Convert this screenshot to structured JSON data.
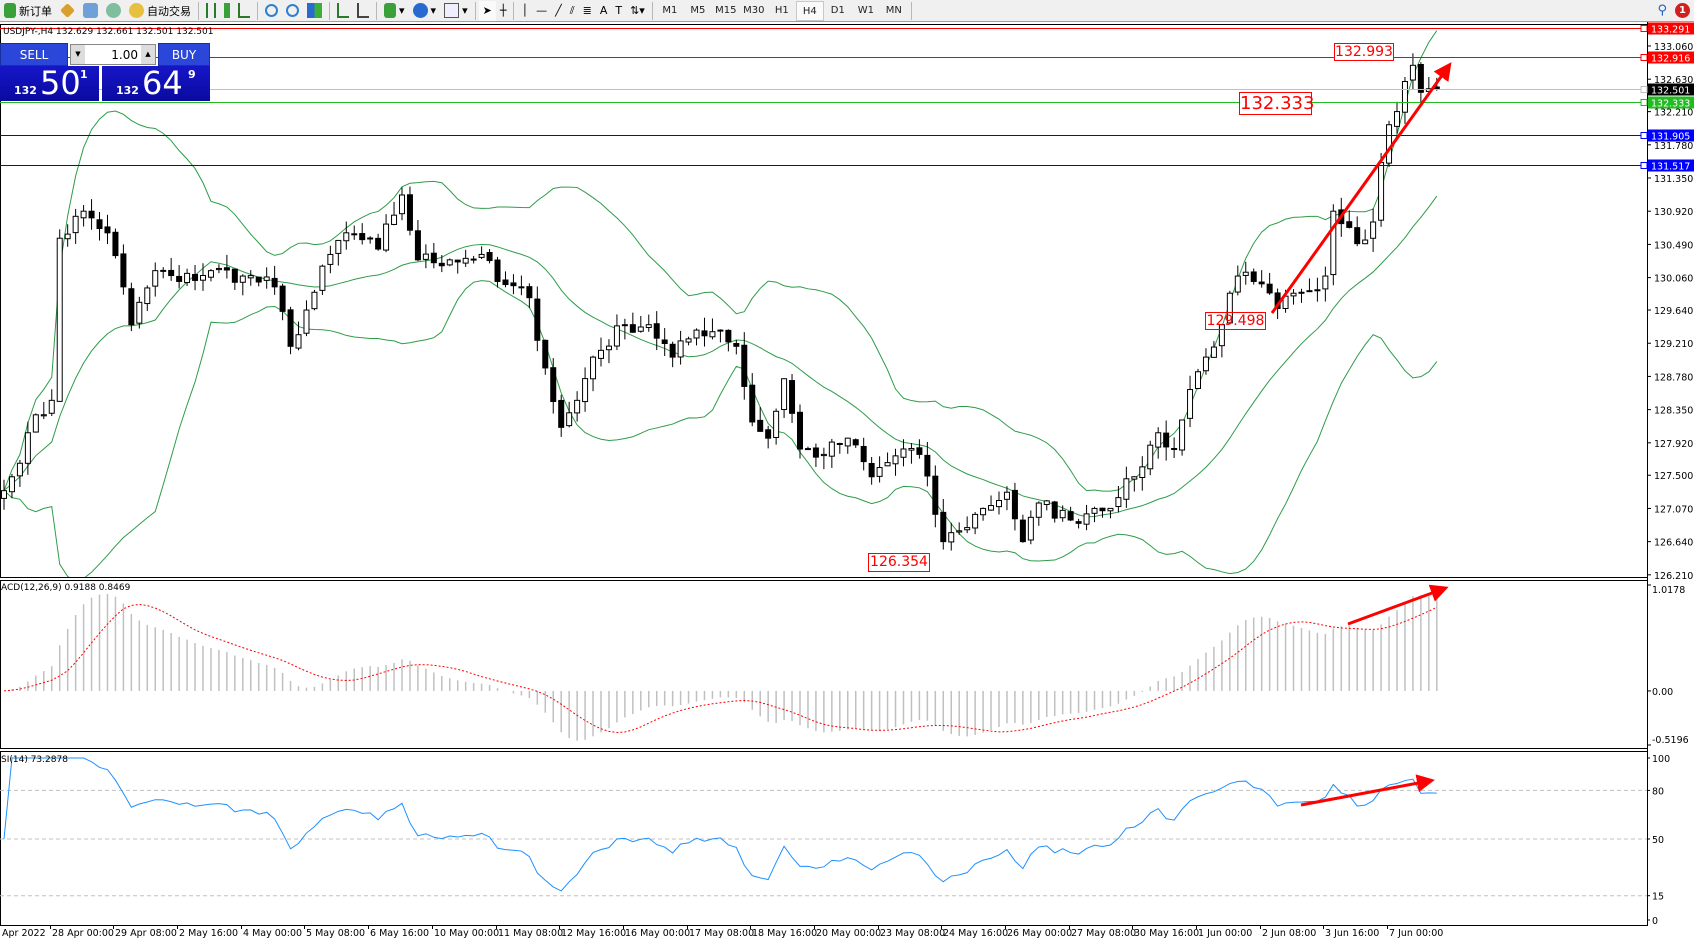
{
  "toolbar": {
    "new_order": "新订单",
    "auto_trading": "自动交易",
    "timeframes": [
      "M1",
      "M5",
      "M15",
      "M30",
      "H1",
      "H4",
      "D1",
      "W1",
      "MN"
    ],
    "selected_timeframe": "H4",
    "notification_count": "1"
  },
  "header": {
    "symbol_info": "USDJPY-,H4  132.629 132.661 132.501 132.501"
  },
  "trade_panel": {
    "sell_label": "SELL",
    "buy_label": "BUY",
    "volume": "1.00",
    "sell_price": {
      "prefix": "132",
      "big": "50",
      "sup": "1"
    },
    "buy_price": {
      "prefix": "132",
      "big": "64",
      "sup": "9"
    }
  },
  "indicators": {
    "macd_label": "ACD(12,26,9) 0.9188 0.8469",
    "rsi_label": "SI(14) 73.2878"
  },
  "colors": {
    "bands": "#2e9c48",
    "macd_hist": "#c0c0c0",
    "macd_signal": "#ff0000",
    "rsi": "#1e90ff",
    "annotation": "#ff0000"
  },
  "chart_data": {
    "type": "candlestick",
    "symbol": "USDJPY-",
    "timeframe": "H4",
    "price_ticks": [
      "133.060",
      "132.630",
      "132.210",
      "131.780",
      "131.350",
      "130.920",
      "130.490",
      "130.060",
      "129.640",
      "129.210",
      "128.780",
      "128.350",
      "127.920",
      "127.500",
      "127.070",
      "126.640",
      "126.210"
    ],
    "ylim": [
      126.21,
      133.291
    ],
    "time_labels": [
      "Apr 2022",
      "28 Apr 00:00",
      "29 Apr 08:00",
      "2 May 16:00",
      "4 May 00:00",
      "5 May 08:00",
      "6 May 16:00",
      "10 May 00:00",
      "11 May 08:00",
      "12 May 16:00",
      "16 May 00:00",
      "17 May 08:00",
      "18 May 16:00",
      "20 May 00:00",
      "23 May 08:00",
      "24 May 16:00",
      "26 May 00:00",
      "27 May 08:00",
      "30 May 16:00",
      "1 Jun 00:00",
      "2 Jun 08:00",
      "3 Jun 16:00",
      "7 Jun 00:00"
    ],
    "close_keypoints": [
      [
        0,
        127.3
      ],
      [
        1,
        127.48
      ],
      [
        3,
        128.05
      ],
      [
        6,
        128.47
      ],
      [
        7,
        130.57
      ],
      [
        10,
        130.92
      ],
      [
        13,
        130.64
      ],
      [
        15,
        129.94
      ],
      [
        16,
        129.45
      ],
      [
        19,
        130.15
      ],
      [
        22,
        130.01
      ],
      [
        26,
        130.15
      ],
      [
        30,
        130.08
      ],
      [
        34,
        129.94
      ],
      [
        36,
        129.17
      ],
      [
        39,
        129.87
      ],
      [
        41,
        130.36
      ],
      [
        43,
        130.64
      ],
      [
        47,
        130.43
      ],
      [
        50,
        131.13
      ],
      [
        52,
        130.29
      ],
      [
        56,
        130.29
      ],
      [
        60,
        130.36
      ],
      [
        62,
        130.01
      ],
      [
        66,
        129.8
      ],
      [
        68,
        128.89
      ],
      [
        70,
        128.12
      ],
      [
        72,
        128.47
      ],
      [
        74,
        129.03
      ],
      [
        78,
        129.45
      ],
      [
        81,
        129.45
      ],
      [
        84,
        129.03
      ],
      [
        87,
        129.38
      ],
      [
        90,
        129.38
      ],
      [
        92,
        129.17
      ],
      [
        94,
        128.19
      ],
      [
        96,
        127.98
      ],
      [
        98,
        128.75
      ],
      [
        100,
        127.84
      ],
      [
        103,
        127.77
      ],
      [
        106,
        127.98
      ],
      [
        109,
        127.48
      ],
      [
        113,
        127.84
      ],
      [
        115,
        127.77
      ],
      [
        118,
        126.64
      ],
      [
        120,
        126.78
      ],
      [
        123,
        127.07
      ],
      [
        126,
        127.28
      ],
      [
        128,
        126.64
      ],
      [
        130,
        127.14
      ],
      [
        134,
        126.92
      ],
      [
        137,
        127.07
      ],
      [
        140,
        127.21
      ],
      [
        142,
        127.48
      ],
      [
        145,
        128.05
      ],
      [
        147,
        127.84
      ],
      [
        149,
        128.61
      ],
      [
        151,
        129.03
      ],
      [
        153,
        129.45
      ],
      [
        155,
        130.08
      ],
      [
        157,
        130.01
      ],
      [
        160,
        129.66
      ],
      [
        163,
        129.87
      ],
      [
        166,
        130.08
      ],
      [
        167,
        130.92
      ],
      [
        169,
        130.71
      ],
      [
        170,
        130.5
      ],
      [
        172,
        130.78
      ],
      [
        173,
        131.55
      ],
      [
        174,
        132.04
      ],
      [
        176,
        132.6
      ],
      [
        177,
        132.81
      ],
      [
        178,
        132.46
      ],
      [
        180,
        132.501
      ]
    ],
    "horizontal_lines": [
      {
        "price": "133.291",
        "color": "#ff0000"
      },
      {
        "price": "132.916",
        "color": "#ff0000"
      },
      {
        "price": "132.501",
        "color": "#000000",
        "line": "#c0c0c0"
      },
      {
        "price": "132.333",
        "color": "#22bb22"
      },
      {
        "price": "131.905",
        "color": "#0000ff"
      },
      {
        "price": "131.517",
        "color": "#0000ff"
      }
    ],
    "annotations": [
      "132.993",
      "132.333",
      "129.498",
      "126.354"
    ],
    "bollinger": {
      "period": 20,
      "deviation": 2
    },
    "macd": {
      "params": "12,26,9",
      "ticks": [
        "1.0178",
        "0.00",
        "-0.5196"
      ],
      "ylim": [
        -0.5196,
        1.0178
      ]
    },
    "rsi": {
      "period": 14,
      "ticks": [
        "100",
        "80",
        "50",
        "15",
        "0"
      ],
      "levels": [
        80,
        50,
        15
      ],
      "ylim": [
        0,
        100
      ]
    }
  }
}
